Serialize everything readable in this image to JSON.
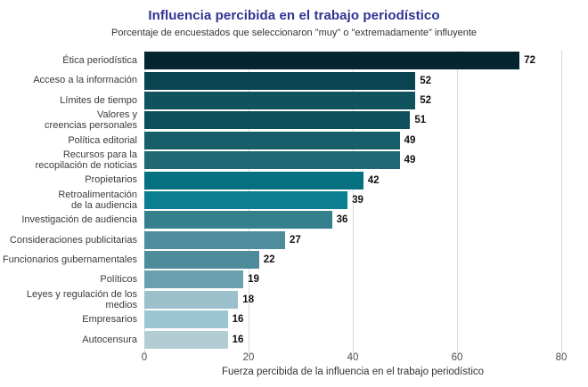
{
  "header": {
    "title": "Influencia percibida en el trabajo periodístico",
    "subtitle": "Porcentaje de encuestados que seleccionaron \"muy\" o \"extremadamente\" influyente"
  },
  "chart_data": {
    "type": "bar",
    "orientation": "horizontal",
    "title": "Influencia percibida en el trabajo periodístico",
    "subtitle": "Porcentaje de encuestados que seleccionaron \"muy\" o \"extremadamente\" influyente",
    "categories": [
      "Ética periodística",
      "Acceso a la información",
      "Límites de tiempo",
      "Valores y\ncreencias personales",
      "Política editorial",
      "Recursos para la\nrecopilación de noticias",
      "Propietarios",
      "Retroalimentación\nde la audiencia",
      "Investigación de audiencia",
      "Consideraciones publicitarias",
      "Funcionarios gubernamentales",
      "Políticos",
      "Leyes y regulación de los medios",
      "Empresarios",
      "Autocensura"
    ],
    "values": [
      72,
      52,
      52,
      51,
      49,
      49,
      42,
      39,
      36,
      27,
      22,
      19,
      18,
      16,
      16
    ],
    "bar_colors": [
      "#052631",
      "#0A4450",
      "#10535F",
      "#0E4F5C",
      "#175E6B",
      "#1F6874",
      "#057080",
      "#0B7E91",
      "#34808D",
      "#4F8C9D",
      "#4E8B9B",
      "#69A0AF",
      "#9BC0CB",
      "#9CC5D3",
      "#B2CCD3"
    ],
    "xlabel": "Fuerza percibida de la influencia en el trabajo periodístico",
    "ylabel": "",
    "xlim": [
      0,
      80
    ],
    "xticks": [
      0,
      20,
      40,
      60,
      80
    ],
    "grid": "vertical",
    "legend": "none"
  },
  "colors": {
    "title": "#2F3292",
    "subtitle": "#333333",
    "gridline": "#D9D9D9",
    "axis_text": "#4D4D4D",
    "value_label": "#111111",
    "category_label": "#3A3A3A",
    "background": "#FFFFFF"
  }
}
